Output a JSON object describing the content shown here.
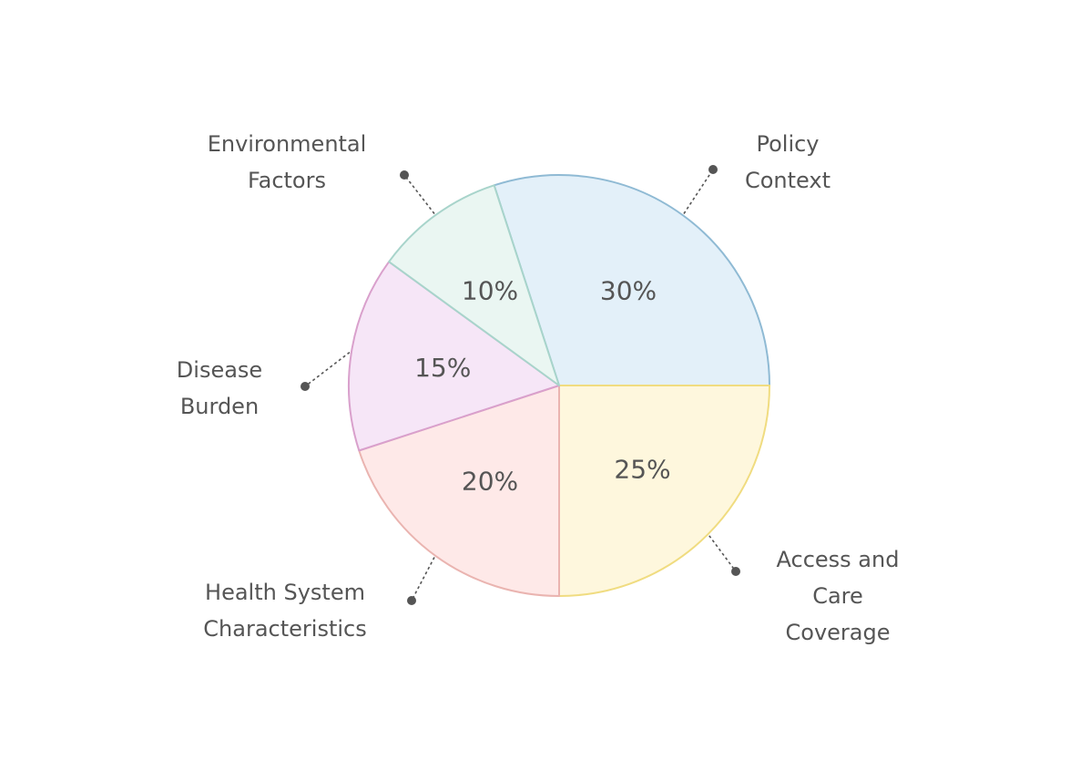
{
  "chart_data": {
    "type": "pie",
    "categories": [
      "Policy Context",
      "Access and Care Coverage",
      "Health System Characteristics",
      "Disease Burden",
      "Environmental Factors"
    ],
    "values": [
      30,
      25,
      20,
      15,
      10
    ],
    "slice_labels": [
      "30%",
      "25%",
      "20%",
      "15%",
      "10%"
    ],
    "label_lines": [
      [
        "Policy",
        "Context"
      ],
      [
        "Access and",
        "Care",
        "Coverage"
      ],
      [
        "Health System",
        "Characteristics"
      ],
      [
        "Disease",
        "Burden"
      ],
      [
        "Environmental",
        "Factors"
      ]
    ],
    "colors": {
      "fill": [
        "#e3f0f9",
        "#fef7dd",
        "#fee9e8",
        "#f6e6f7",
        "#eaf6f2"
      ],
      "stroke": [
        "#8fbad4",
        "#f0dc80",
        "#eab4b0",
        "#d9a0cc",
        "#a8d4cb"
      ],
      "text": "#555555",
      "leader": "#555555"
    },
    "title": "",
    "legend": "none"
  }
}
